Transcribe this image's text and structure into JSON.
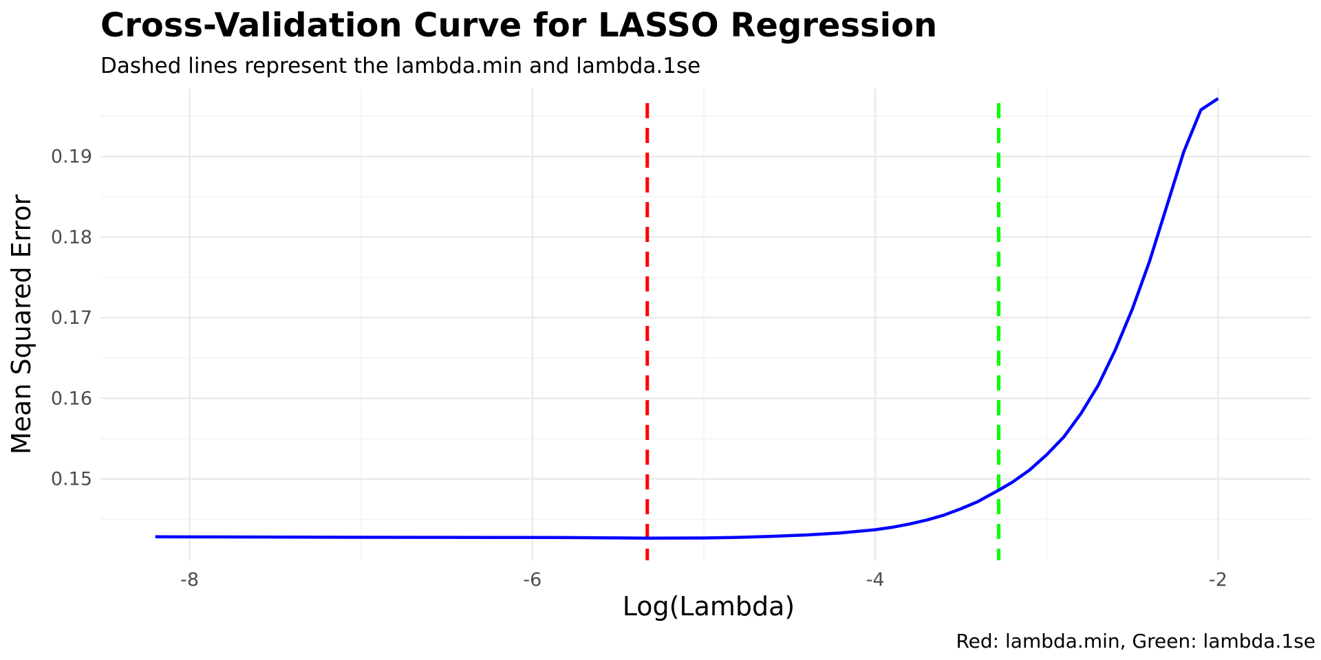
{
  "chart_data": {
    "type": "line",
    "title": "Cross-Validation Curve for LASSO Regression",
    "subtitle": "Dashed lines represent the lambda.min and lambda.1se",
    "xlabel": "Log(Lambda)",
    "ylabel": "Mean Squared Error",
    "caption": "Red: lambda.min, Green: lambda.1se",
    "xlim": [
      -8.52,
      -1.46
    ],
    "ylim": [
      0.1399,
      0.1985
    ],
    "x_ticks": [
      -8,
      -6,
      -4,
      -2
    ],
    "x_tick_labels": [
      "-8",
      "-6",
      "-4",
      "-2"
    ],
    "y_ticks": [
      0.15,
      0.16,
      0.17,
      0.18,
      0.19
    ],
    "y_tick_labels": [
      "0.15",
      "0.16",
      "0.17",
      "0.18",
      "0.19"
    ],
    "grid": true,
    "series": [
      {
        "color": "#0000ff",
        "points": [
          [
            -8.2,
            0.14282
          ],
          [
            -7.8,
            0.1428
          ],
          [
            -7.4,
            0.14278
          ],
          [
            -7.0,
            0.14276
          ],
          [
            -6.6,
            0.14275
          ],
          [
            -6.2,
            0.14274
          ],
          [
            -5.8,
            0.14272
          ],
          [
            -5.5,
            0.14268
          ],
          [
            -5.33,
            0.14265
          ],
          [
            -5.0,
            0.14267
          ],
          [
            -4.8,
            0.14275
          ],
          [
            -4.6,
            0.14288
          ],
          [
            -4.4,
            0.14305
          ],
          [
            -4.2,
            0.1433
          ],
          [
            -4.0,
            0.1437
          ],
          [
            -3.9,
            0.144
          ],
          [
            -3.8,
            0.1444
          ],
          [
            -3.7,
            0.1449
          ],
          [
            -3.6,
            0.1455
          ],
          [
            -3.5,
            0.1463
          ],
          [
            -3.4,
            0.1472
          ],
          [
            -3.28,
            0.1486
          ],
          [
            -3.2,
            0.1496
          ],
          [
            -3.1,
            0.1511
          ],
          [
            -3.0,
            0.153
          ],
          [
            -2.9,
            0.1552
          ],
          [
            -2.8,
            0.1581
          ],
          [
            -2.7,
            0.1616
          ],
          [
            -2.6,
            0.166
          ],
          [
            -2.5,
            0.1711
          ],
          [
            -2.4,
            0.177
          ],
          [
            -2.3,
            0.1838
          ],
          [
            -2.2,
            0.1906
          ],
          [
            -2.1,
            0.1958
          ],
          [
            -2.0,
            0.1972
          ]
        ]
      }
    ],
    "vlines": [
      {
        "name": "lambda.min",
        "x": -5.33,
        "color": "#ff0000"
      },
      {
        "name": "lambda.1se",
        "x": -3.28,
        "color": "#00ff00"
      }
    ]
  }
}
